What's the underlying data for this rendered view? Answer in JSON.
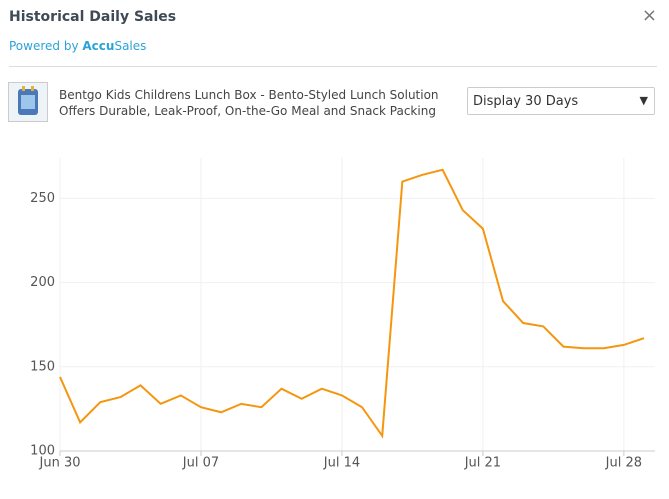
{
  "header": {
    "title": "Historical Daily Sales",
    "powered_by": "Powered by",
    "brand_prefix": "Accu",
    "brand_suffix": "Sales",
    "close": "×"
  },
  "product": {
    "title_lines": [
      "Bentgo Kids Childrens Lunch Box - Bento-Styled Lunch Solution",
      "Offers Durable, Leak-Proof, On-the-Go Meal and Snack Packing"
    ]
  },
  "range_select": {
    "label": "Display 30 Days"
  },
  "chart_data": {
    "type": "line",
    "categories": [
      "Jun 30",
      null,
      null,
      null,
      null,
      null,
      null,
      "Jul 07",
      null,
      null,
      null,
      null,
      null,
      null,
      "Jul 14",
      null,
      null,
      null,
      null,
      null,
      null,
      "Jul 21",
      null,
      null,
      null,
      null,
      null,
      null,
      "Jul 28",
      null
    ],
    "series": [
      {
        "color": "#f5960f",
        "values": [
          144,
          117,
          129,
          132,
          139,
          128,
          133,
          126,
          123,
          128,
          126,
          137,
          131,
          137,
          133,
          126,
          109,
          260,
          264,
          267,
          243,
          232,
          189,
          176,
          174,
          162,
          161,
          161,
          163,
          167
        ]
      }
    ],
    "ylim": [
      100,
      274
    ],
    "yticks": [
      100,
      150,
      200,
      250
    ],
    "grid": true
  }
}
